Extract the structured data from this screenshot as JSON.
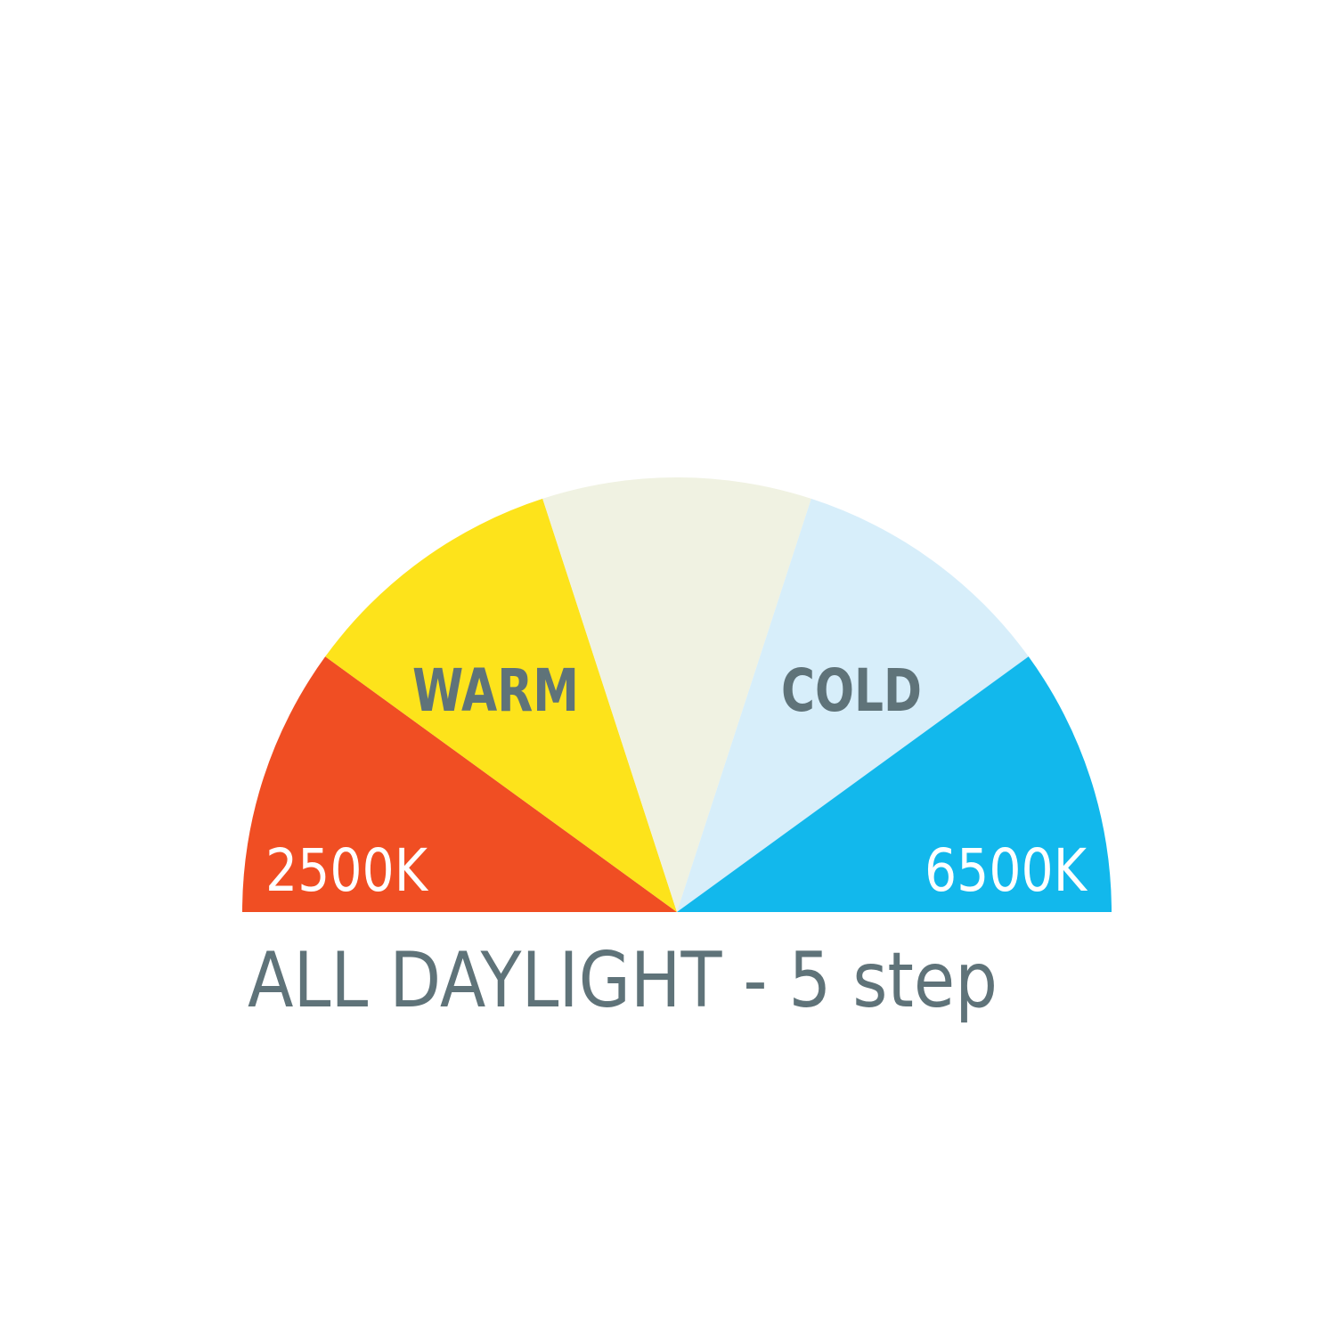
{
  "diagram": {
    "title": "ALL DAYLIGHT - 5 step",
    "steps": 5,
    "segments": [
      {
        "color": "#F04E23"
      },
      {
        "color": "#FDE31B"
      },
      {
        "color": "#F0F2E2"
      },
      {
        "color": "#D7EEFA"
      },
      {
        "color": "#12B8EC"
      }
    ],
    "labels": {
      "warm": "WARM",
      "cold": "COLD",
      "min_temp": "2500K",
      "max_temp": "6500K"
    },
    "text_color": "#5F7379",
    "temp_label_color": "#FFFFFF"
  }
}
